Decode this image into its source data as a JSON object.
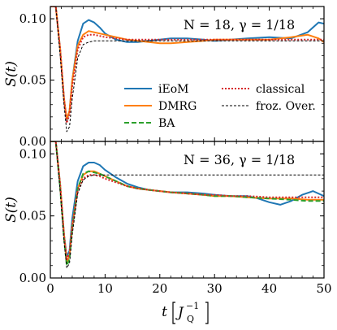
{
  "chart_data": [
    {
      "type": "line",
      "annotation": "N = 18, γ = 1/18",
      "ylabel": "S(t)",
      "xlim": [
        0,
        50
      ],
      "ylim": [
        0,
        0.11
      ],
      "yticks": [
        "0.00",
        "0.05",
        "0.10"
      ],
      "legend": {
        "placement": "bottom-right",
        "columns": 2
      },
      "series": [
        {
          "name": "iEoM",
          "color": "#1f77b4",
          "dash": "solid",
          "x": [
            0,
            1,
            1.8,
            2.5,
            3,
            3.5,
            4,
            5,
            6,
            7,
            8,
            9,
            10,
            12,
            14,
            16,
            18,
            20,
            22,
            25,
            28,
            30,
            33,
            36,
            40,
            44,
            47,
            49,
            50
          ],
          "y": [
            0.11,
            0.11,
            0.075,
            0.035,
            0.017,
            0.025,
            0.05,
            0.082,
            0.096,
            0.099,
            0.097,
            0.093,
            0.088,
            0.083,
            0.081,
            0.081,
            0.082,
            0.083,
            0.084,
            0.084,
            0.083,
            0.082,
            0.083,
            0.084,
            0.085,
            0.084,
            0.089,
            0.097,
            0.096
          ]
        },
        {
          "name": "DMRG",
          "color": "#ff7f0e",
          "dash": "solid",
          "x": [
            0,
            1,
            1.8,
            2.5,
            3,
            3.5,
            4,
            5,
            6,
            7,
            8,
            9,
            10,
            12,
            14,
            16,
            18,
            20,
            22,
            25,
            28,
            30,
            33,
            36,
            40,
            44,
            47,
            49,
            50
          ],
          "y": [
            0.11,
            0.11,
            0.075,
            0.035,
            0.018,
            0.025,
            0.05,
            0.078,
            0.087,
            0.09,
            0.089,
            0.088,
            0.087,
            0.085,
            0.083,
            0.082,
            0.081,
            0.08,
            0.08,
            0.081,
            0.082,
            0.083,
            0.083,
            0.083,
            0.083,
            0.085,
            0.087,
            0.084,
            0.081
          ]
        },
        {
          "name": "BA",
          "color": "#2ca02c",
          "dash": "dashed",
          "x": [],
          "y": []
        },
        {
          "name": "classical",
          "color": "#d62728",
          "dash": "dotted",
          "x": [
            0,
            1,
            1.8,
            2.5,
            3,
            3.5,
            4,
            5,
            6,
            7,
            8,
            9,
            10,
            12,
            14,
            16,
            18,
            20,
            22,
            25,
            28,
            30,
            33,
            36,
            40,
            44,
            47,
            50
          ],
          "y": [
            0.11,
            0.11,
            0.075,
            0.035,
            0.015,
            0.022,
            0.045,
            0.075,
            0.085,
            0.087,
            0.087,
            0.086,
            0.085,
            0.084,
            0.083,
            0.083,
            0.083,
            0.083,
            0.083,
            0.083,
            0.083,
            0.083,
            0.083,
            0.083,
            0.083,
            0.083,
            0.083,
            0.083
          ]
        },
        {
          "name": "froz. Over.",
          "color": "#000000",
          "dash": "thin-dashed",
          "x": [
            0,
            1,
            1.8,
            2.5,
            3,
            3.5,
            4,
            5,
            6,
            7,
            8,
            10,
            14,
            20,
            30,
            40,
            50
          ],
          "y": [
            0.11,
            0.11,
            0.07,
            0.03,
            0.008,
            0.012,
            0.035,
            0.068,
            0.079,
            0.081,
            0.082,
            0.082,
            0.082,
            0.082,
            0.082,
            0.082,
            0.082
          ]
        }
      ]
    },
    {
      "type": "line",
      "annotation": "N = 36, γ = 1/18",
      "ylabel": "S(t)",
      "xlabel": "t [J_Q^{-1}]",
      "xlim": [
        0,
        50
      ],
      "ylim": [
        0,
        0.11
      ],
      "xticks": [
        "0",
        "10",
        "20",
        "30",
        "40",
        "50"
      ],
      "yticks": [
        "0.00",
        "0.05",
        "0.10"
      ],
      "series": [
        {
          "name": "iEoM",
          "color": "#1f77b4",
          "dash": "solid",
          "x": [
            0,
            1,
            1.8,
            2.5,
            3,
            3.5,
            4,
            5,
            6,
            7,
            8,
            9,
            10,
            12,
            14,
            16,
            18,
            20,
            22,
            25,
            28,
            30,
            33,
            36,
            38,
            40,
            42,
            44,
            46,
            48,
            50
          ],
          "y": [
            0.11,
            0.11,
            0.075,
            0.035,
            0.017,
            0.022,
            0.048,
            0.078,
            0.09,
            0.093,
            0.093,
            0.091,
            0.087,
            0.081,
            0.076,
            0.073,
            0.071,
            0.07,
            0.069,
            0.069,
            0.068,
            0.067,
            0.066,
            0.066,
            0.064,
            0.061,
            0.059,
            0.062,
            0.067,
            0.07,
            0.066
          ]
        },
        {
          "name": "DMRG",
          "color": "#ff7f0e",
          "dash": "solid",
          "x": [
            0,
            1,
            1.8,
            2.5,
            3,
            3.5,
            4,
            5,
            6,
            7,
            8,
            9,
            10,
            12,
            14,
            16,
            18,
            20,
            22,
            25,
            28,
            30,
            33,
            36,
            40,
            44,
            47,
            50
          ],
          "y": [
            0.11,
            0.11,
            0.075,
            0.035,
            0.013,
            0.018,
            0.042,
            0.072,
            0.083,
            0.086,
            0.086,
            0.084,
            0.082,
            0.078,
            0.074,
            0.072,
            0.071,
            0.07,
            0.069,
            0.068,
            0.067,
            0.066,
            0.066,
            0.065,
            0.064,
            0.064,
            0.063,
            0.063
          ]
        },
        {
          "name": "BA",
          "color": "#2ca02c",
          "dash": "dashed",
          "x": [
            0,
            1,
            1.8,
            2.5,
            3,
            3.5,
            4,
            5,
            6,
            7,
            8,
            9,
            10,
            12,
            14,
            16,
            18,
            20,
            22,
            25,
            28,
            30,
            33,
            36,
            40,
            44,
            47,
            50
          ],
          "y": [
            0.11,
            0.11,
            0.072,
            0.032,
            0.01,
            0.015,
            0.04,
            0.072,
            0.084,
            0.086,
            0.085,
            0.084,
            0.082,
            0.078,
            0.074,
            0.072,
            0.071,
            0.07,
            0.069,
            0.068,
            0.067,
            0.066,
            0.066,
            0.065,
            0.064,
            0.063,
            0.062,
            0.062
          ]
        },
        {
          "name": "classical",
          "color": "#d62728",
          "dash": "dotted",
          "x": [
            0,
            1,
            1.8,
            2.5,
            3,
            3.5,
            4,
            5,
            6,
            7,
            8,
            9,
            10,
            12,
            14,
            16,
            18,
            20,
            22,
            25,
            28,
            30,
            33,
            36,
            40,
            44,
            47,
            50
          ],
          "y": [
            0.11,
            0.11,
            0.075,
            0.035,
            0.015,
            0.02,
            0.042,
            0.07,
            0.08,
            0.083,
            0.083,
            0.082,
            0.08,
            0.077,
            0.074,
            0.072,
            0.071,
            0.07,
            0.069,
            0.068,
            0.067,
            0.067,
            0.066,
            0.066,
            0.065,
            0.065,
            0.065,
            0.065
          ]
        },
        {
          "name": "froz. Over.",
          "color": "#000000",
          "dash": "thin-dashed",
          "x": [
            0,
            1,
            1.8,
            2.5,
            3,
            3.5,
            4,
            5,
            6,
            7,
            8,
            10,
            14,
            20,
            30,
            40,
            50
          ],
          "y": [
            0.11,
            0.11,
            0.07,
            0.03,
            0.008,
            0.012,
            0.035,
            0.068,
            0.079,
            0.082,
            0.083,
            0.083,
            0.083,
            0.083,
            0.083,
            0.083,
            0.083
          ]
        }
      ]
    }
  ]
}
